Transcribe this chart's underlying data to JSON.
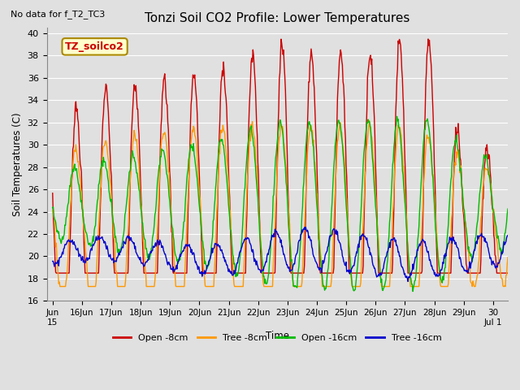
{
  "title": "Tonzi Soil CO2 Profile: Lower Temperatures",
  "subtitle": "No data for f_T2_TC3",
  "ylabel": "Soil Temperatures (C)",
  "xlabel": "Time",
  "ylim": [
    16,
    40.5
  ],
  "yticks": [
    16,
    18,
    20,
    22,
    24,
    26,
    28,
    30,
    32,
    34,
    36,
    38,
    40
  ],
  "bg_color": "#e0e0e0",
  "plot_bg_color": "#e0e0e0",
  "grid_color": "#ffffff",
  "colors": {
    "open_8cm": "#cc0000",
    "tree_8cm": "#ff9900",
    "open_16cm": "#00bb00",
    "tree_16cm": "#0000cc"
  },
  "legend_labels": [
    "Open -8cm",
    "Tree -8cm",
    "Open -16cm",
    "Tree -16cm"
  ],
  "annotation_text": "TZ_soilco2",
  "annotation_bg": "#ffffcc",
  "annotation_border": "#aa8800"
}
